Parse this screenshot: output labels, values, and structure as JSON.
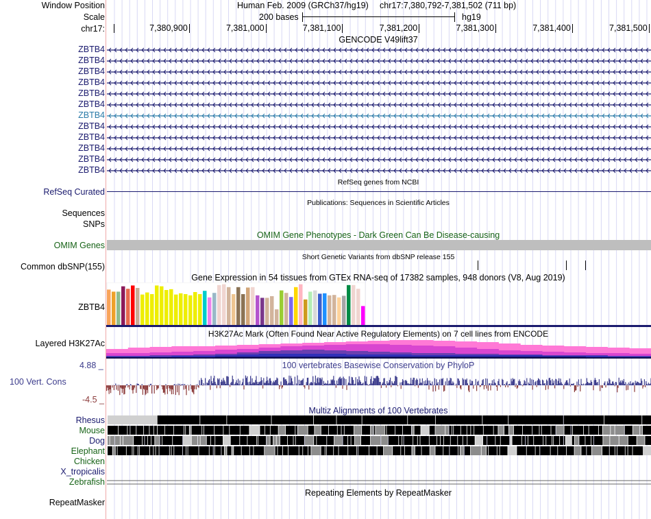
{
  "header": {
    "window_position_label": "Window Position",
    "scale_label": "Scale",
    "chrom_label": "chr17:",
    "assembly_title": "Human Feb. 2009 (GRCh37/hg19)",
    "position": "chr17:7,380,792-7,381,502 (711 bp)",
    "scale_text": "200 bases",
    "scale_db": "hg19",
    "ticks": [
      "7,380,900",
      "7,381,000",
      "7,381,100",
      "7,381,200",
      "7,381,300",
      "7,381,400",
      "7,381,500"
    ]
  },
  "tracks": {
    "gencode": {
      "title": "GENCODE V49lift37",
      "items": [
        {
          "label": "ZBTB4",
          "highlight": false
        },
        {
          "label": "ZBTB4",
          "highlight": false
        },
        {
          "label": "ZBTB4",
          "highlight": false
        },
        {
          "label": "ZBTB4",
          "highlight": false
        },
        {
          "label": "ZBTB4",
          "highlight": false
        },
        {
          "label": "ZBTB4",
          "highlight": false
        },
        {
          "label": "ZBTB4",
          "highlight": true
        },
        {
          "label": "ZBTB4",
          "highlight": false
        },
        {
          "label": "ZBTB4",
          "highlight": false
        },
        {
          "label": "ZBTB4",
          "highlight": false
        },
        {
          "label": "ZBTB4",
          "highlight": false
        },
        {
          "label": "ZBTB4",
          "highlight": false
        }
      ],
      "strand": "minus"
    },
    "refseq": {
      "title": "RefSeq genes from NCBI",
      "label": "RefSeq Curated"
    },
    "publications": {
      "title": "Publications: Sequences in Scientific Articles",
      "label_1": "Sequences",
      "label_2": "SNPs"
    },
    "omim": {
      "title": "OMIM Gene Phenotypes - Dark Green Can Be Disease-causing",
      "label": "OMIM Genes"
    },
    "dbsnp": {
      "title": "Short Genetic Variants from dbSNP release 155",
      "label": "Common dbSNP(155)",
      "variant_positions_bp": [
        7381277,
        7381392,
        7381417
      ]
    },
    "gtex": {
      "title": "Gene Expression in 54 tissues from GTEx RNA-seq of 17382 samples, 948 donors (V8, Aug 2019)",
      "label": "ZBTB4",
      "bars": [
        {
          "color": "#f9a35a",
          "value": 0.86
        },
        {
          "color": "#eea12a",
          "value": 0.81
        },
        {
          "color": "#8fbc8f",
          "value": 0.81
        },
        {
          "color": "#8b1a5a",
          "value": 0.94
        },
        {
          "color": "#e86a4e",
          "value": 0.88
        },
        {
          "color": "#ff0000",
          "value": 0.96
        },
        {
          "color": "#c8ad96",
          "value": 0.9
        },
        {
          "color": "#eeee00",
          "value": 0.74
        },
        {
          "color": "#eeee00",
          "value": 0.79
        },
        {
          "color": "#eeee00",
          "value": 0.75
        },
        {
          "color": "#eeee00",
          "value": 0.96
        },
        {
          "color": "#eeee00",
          "value": 0.94
        },
        {
          "color": "#eeee00",
          "value": 0.85
        },
        {
          "color": "#eeee00",
          "value": 0.87
        },
        {
          "color": "#eeee00",
          "value": 0.74
        },
        {
          "color": "#eeee00",
          "value": 0.77
        },
        {
          "color": "#eeee00",
          "value": 0.75
        },
        {
          "color": "#eeee00",
          "value": 0.72
        },
        {
          "color": "#eeee00",
          "value": 0.8
        },
        {
          "color": "#eeee00",
          "value": 0.75
        },
        {
          "color": "#00cdcd",
          "value": 0.83
        },
        {
          "color": "#ee82ee",
          "value": 0.67
        },
        {
          "color": "#9ab8c8",
          "value": 0.78
        },
        {
          "color": "#f0d5d0",
          "value": 0.97
        },
        {
          "color": "#f0d5d0",
          "value": 0.99
        },
        {
          "color": "#d2b49c",
          "value": 0.92
        },
        {
          "color": "#eec590",
          "value": 0.75
        },
        {
          "color": "#8b7355",
          "value": 0.92
        },
        {
          "color": "#8b7355",
          "value": 0.75
        },
        {
          "color": "#d2a679",
          "value": 0.91
        },
        {
          "color": "#f0d5d0",
          "value": 0.92
        },
        {
          "color": "#b452cd",
          "value": 0.72
        },
        {
          "color": "#7a378b",
          "value": 0.66
        },
        {
          "color": "#d2b49c",
          "value": 0.66
        },
        {
          "color": "#d2b49c",
          "value": 0.7
        },
        {
          "color": "#d2b49c",
          "value": 0.38
        },
        {
          "color": "#9acd32",
          "value": 0.84
        },
        {
          "color": "#d2b49c",
          "value": 0.78
        },
        {
          "color": "#7b68ee",
          "value": 0.68
        },
        {
          "color": "#ffd700",
          "value": 0.92
        },
        {
          "color": "#ffb6c1",
          "value": 0.99
        },
        {
          "color": "#cd9b1d",
          "value": 0.62
        },
        {
          "color": "#b4eeb4",
          "value": 0.81
        },
        {
          "color": "#d9d9d9",
          "value": 0.84
        },
        {
          "color": "#3a5fcd",
          "value": 0.76
        },
        {
          "color": "#1e90ff",
          "value": 0.77
        },
        {
          "color": "#d2b49c",
          "value": 0.72
        },
        {
          "color": "#d2b49c",
          "value": 0.73
        },
        {
          "color": "#ffd39b",
          "value": 0.67
        },
        {
          "color": "#a6a6a6",
          "value": 0.71
        },
        {
          "color": "#008b45",
          "value": 0.97
        },
        {
          "color": "#f0d5d0",
          "value": 0.97
        },
        {
          "color": "#f0d5d0",
          "value": 0.88
        },
        {
          "color": "#ff00ff",
          "value": 0.46
        }
      ]
    },
    "h3k27ac": {
      "title": "H3K27Ac Mark (Often Found Near Active Regulatory Elements) on 7 cell lines from ENCODE",
      "label": "Layered H3K27Ac"
    },
    "phylop": {
      "title": "100 vertebrates Basewise Conservation by PhyloP",
      "label": "100 Vert. Cons",
      "max_label": "4.88 _",
      "min_label": "-4.5 _",
      "ymax": 4.88,
      "ymin": -4.5
    },
    "multiz": {
      "title": "Multiz Alignments of 100 Vertebrates",
      "species": [
        {
          "name": "Rhesus",
          "color": "navy"
        },
        {
          "name": "Mouse",
          "color": "green"
        },
        {
          "name": "Dog",
          "color": "navy"
        },
        {
          "name": "Elephant",
          "color": "green"
        },
        {
          "name": "Chicken",
          "color": "green"
        },
        {
          "name": "X_tropicalis",
          "color": "navy"
        },
        {
          "name": "Zebrafish",
          "color": "green"
        }
      ]
    },
    "repeatmasker": {
      "title": "Repeating Elements by RepeatMasker",
      "label": "RepeatMasker"
    }
  },
  "colors": {
    "navy": "#1a1a6e",
    "green": "#176317",
    "teal_highlight": "#2a7aa8",
    "phylop_pos": "#3c3c8c",
    "phylop_neg": "#8b3a3a",
    "omim_bar": "#bebebe",
    "grid": "#d8d8f4"
  }
}
